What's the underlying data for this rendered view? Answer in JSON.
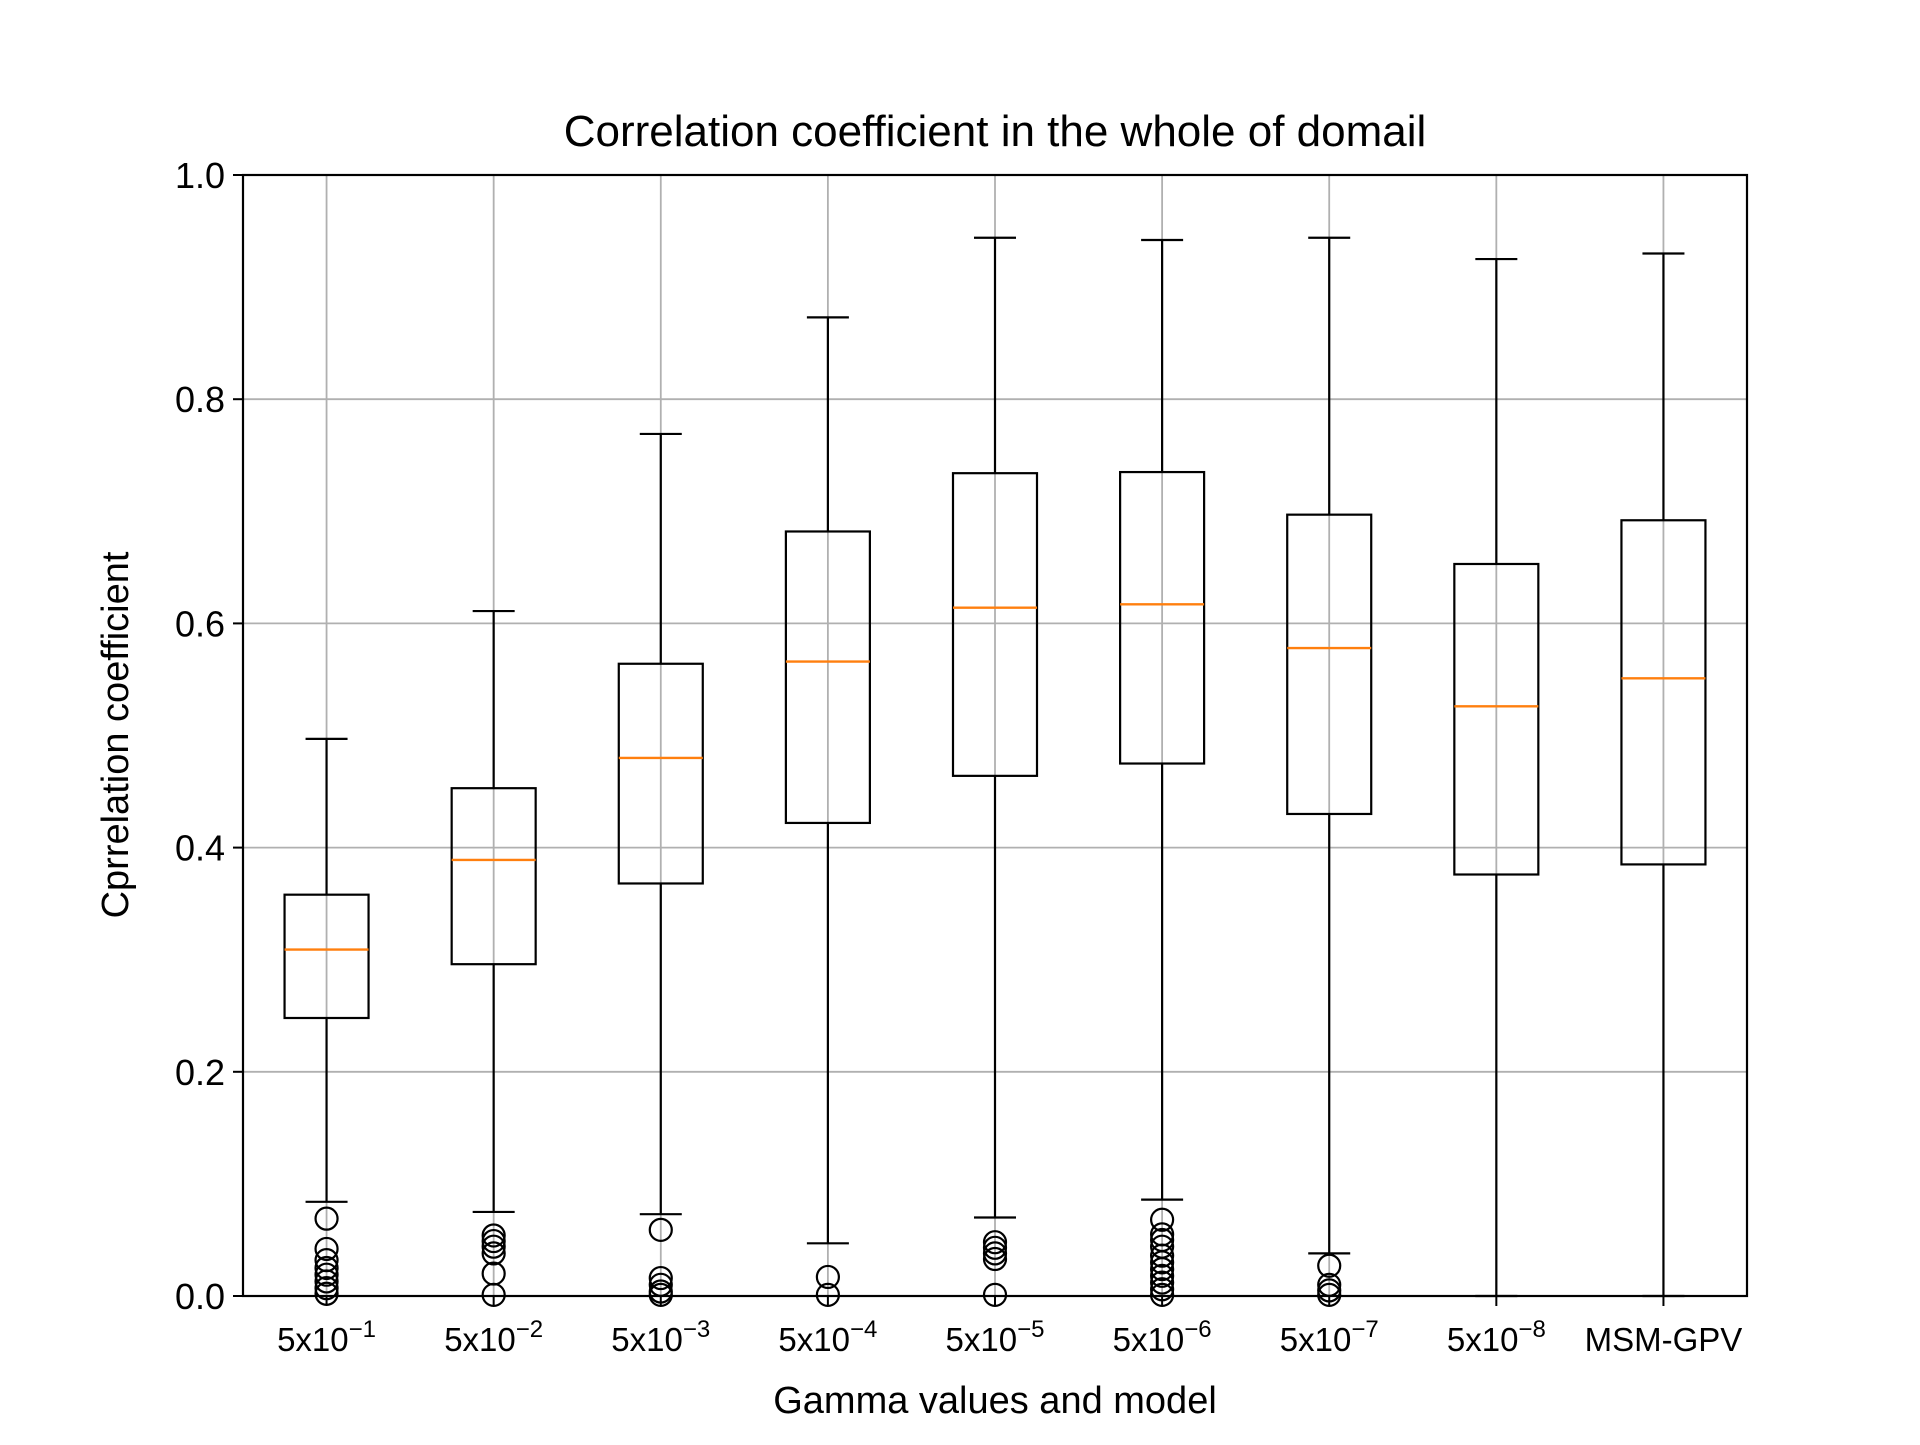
{
  "chart_data": {
    "type": "box",
    "title": "Correlation coefficient in the whole of domail",
    "xlabel": "Gamma values and model",
    "ylabel": "Cprrelation coefficient",
    "ylim": [
      0.0,
      1.0
    ],
    "yticks": [
      0.0,
      0.2,
      0.4,
      0.6,
      0.8,
      1.0
    ],
    "ytick_labels": [
      "0.0",
      "0.2",
      "0.4",
      "0.6",
      "0.8",
      "1.0"
    ],
    "grid": true,
    "categories": [
      {
        "base": "5x10",
        "exp": "−1"
      },
      {
        "base": "5x10",
        "exp": "−2"
      },
      {
        "base": "5x10",
        "exp": "−3"
      },
      {
        "base": "5x10",
        "exp": "−4"
      },
      {
        "base": "5x10",
        "exp": "−5"
      },
      {
        "base": "5x10",
        "exp": "−6"
      },
      {
        "base": "5x10",
        "exp": "−7"
      },
      {
        "base": "5x10",
        "exp": "−8"
      },
      {
        "base": "MSM-GPV",
        "exp": ""
      }
    ],
    "boxes": [
      {
        "whislo": 0.084,
        "q1": 0.248,
        "med": 0.309,
        "q3": 0.358,
        "whishi": 0.497,
        "fliers": [
          0.069,
          0.042,
          0.032,
          0.025,
          0.019,
          0.013,
          0.007,
          0.002
        ]
      },
      {
        "whislo": 0.075,
        "q1": 0.296,
        "med": 0.389,
        "q3": 0.453,
        "whishi": 0.611,
        "fliers": [
          0.054,
          0.049,
          0.044,
          0.038,
          0.02,
          0.001
        ]
      },
      {
        "whislo": 0.073,
        "q1": 0.368,
        "med": 0.48,
        "q3": 0.564,
        "whishi": 0.769,
        "fliers": [
          0.059,
          0.016,
          0.01,
          0.004,
          0.001
        ]
      },
      {
        "whislo": 0.047,
        "q1": 0.422,
        "med": 0.566,
        "q3": 0.682,
        "whishi": 0.873,
        "fliers": [
          0.017,
          0.001
        ]
      },
      {
        "whislo": 0.07,
        "q1": 0.464,
        "med": 0.614,
        "q3": 0.734,
        "whishi": 0.944,
        "fliers": [
          0.048,
          0.043,
          0.038,
          0.033,
          0.001
        ]
      },
      {
        "whislo": 0.086,
        "q1": 0.475,
        "med": 0.617,
        "q3": 0.735,
        "whishi": 0.942,
        "fliers": [
          0.068,
          0.055,
          0.05,
          0.044,
          0.036,
          0.03,
          0.024,
          0.018,
          0.012,
          0.006,
          0.001
        ]
      },
      {
        "whislo": 0.038,
        "q1": 0.43,
        "med": 0.578,
        "q3": 0.697,
        "whishi": 0.944,
        "fliers": [
          0.027,
          0.01,
          0.005,
          0.001
        ]
      },
      {
        "whislo": 0.0,
        "q1": 0.376,
        "med": 0.526,
        "q3": 0.653,
        "whishi": 0.925,
        "fliers": []
      },
      {
        "whislo": 0.0,
        "q1": 0.385,
        "med": 0.551,
        "q3": 0.692,
        "whishi": 0.93,
        "fliers": []
      }
    ],
    "colors": {
      "box": "#000000",
      "median": "#ff7f0e",
      "grid": "#b0b0b0",
      "flier": "#000000",
      "background": "#ffffff"
    }
  }
}
